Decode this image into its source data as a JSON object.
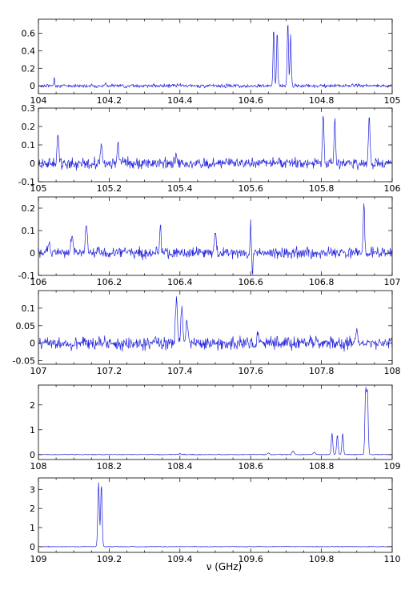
{
  "trace_color": "#2222dd",
  "xlabel": "ν (GHz)",
  "chart_data": [
    {
      "type": "line",
      "xlim": [
        104,
        105
      ],
      "ylim": [
        -0.09,
        0.76
      ],
      "xticks": [
        104,
        104.2,
        104.4,
        104.6,
        104.8,
        105
      ],
      "xticklabels": [
        "104",
        "104.2",
        "104.4",
        "104.6",
        "104.8",
        "105"
      ],
      "yticks": [
        0,
        0.2,
        0.4,
        0.6
      ],
      "yticklabels": [
        "0",
        "0.2",
        "0.4",
        "0.6"
      ],
      "noise": 0.012,
      "peaks": [
        {
          "x": 104.045,
          "h": 0.09,
          "w": 0.002
        },
        {
          "x": 104.19,
          "h": 0.03,
          "w": 0.002
        },
        {
          "x": 104.665,
          "h": 0.66,
          "w": 0.0025
        },
        {
          "x": 104.675,
          "h": 0.62,
          "w": 0.0025
        },
        {
          "x": 104.705,
          "h": 0.74,
          "w": 0.0025
        },
        {
          "x": 104.713,
          "h": 0.58,
          "w": 0.0025
        }
      ]
    },
    {
      "type": "line",
      "xlim": [
        105,
        106
      ],
      "ylim": [
        -0.1,
        0.3
      ],
      "xticks": [
        105,
        105.2,
        105.4,
        105.6,
        105.8,
        106
      ],
      "xticklabels": [
        "105",
        "105.2",
        "105.4",
        "105.6",
        "105.8",
        "106"
      ],
      "yticks": [
        -0.1,
        0,
        0.1,
        0.2,
        0.3
      ],
      "yticklabels": [
        "-0.1",
        "0",
        "0.1",
        "0.2",
        "0.3"
      ],
      "noise": 0.018,
      "peaks": [
        {
          "x": 105.055,
          "h": 0.19,
          "w": 0.003
        },
        {
          "x": 105.178,
          "h": 0.12,
          "w": 0.003
        },
        {
          "x": 105.225,
          "h": 0.12,
          "w": 0.003
        },
        {
          "x": 105.39,
          "h": 0.06,
          "w": 0.003
        },
        {
          "x": 105.805,
          "h": 0.28,
          "w": 0.003
        },
        {
          "x": 105.838,
          "h": 0.24,
          "w": 0.003
        },
        {
          "x": 105.935,
          "h": 0.27,
          "w": 0.003
        }
      ]
    },
    {
      "type": "line",
      "xlim": [
        106,
        107
      ],
      "ylim": [
        -0.1,
        0.25
      ],
      "xticks": [
        106,
        106.2,
        106.4,
        106.6,
        106.8,
        107
      ],
      "xticklabels": [
        "106",
        "106.2",
        "106.4",
        "106.6",
        "106.8",
        "107"
      ],
      "yticks": [
        -0.1,
        0,
        0.1,
        0.2
      ],
      "yticklabels": [
        "-0.1",
        "0",
        "0.1",
        "0.2"
      ],
      "noise": 0.015,
      "peaks": [
        {
          "x": 106.03,
          "h": 0.05,
          "w": 0.004
        },
        {
          "x": 106.095,
          "h": 0.08,
          "w": 0.004
        },
        {
          "x": 106.135,
          "h": 0.12,
          "w": 0.004
        },
        {
          "x": 106.345,
          "h": 0.13,
          "w": 0.003
        },
        {
          "x": 106.5,
          "h": 0.1,
          "w": 0.003
        },
        {
          "x": 106.6,
          "h": 0.13,
          "w": 0.002
        },
        {
          "x": 106.605,
          "h": -0.09,
          "w": 0.002
        },
        {
          "x": 106.92,
          "h": 0.22,
          "w": 0.003
        }
      ]
    },
    {
      "type": "line",
      "xlim": [
        107,
        108
      ],
      "ylim": [
        -0.06,
        0.15
      ],
      "xticks": [
        107,
        107.2,
        107.4,
        107.6,
        107.8,
        108
      ],
      "xticklabels": [
        "107",
        "107.2",
        "107.4",
        "107.6",
        "107.8",
        "108"
      ],
      "yticks": [
        -0.05,
        0,
        0.05,
        0.1
      ],
      "yticklabels": [
        "-0.05",
        "0",
        "0.05",
        "0.1"
      ],
      "noise": 0.011,
      "peaks": [
        {
          "x": 107.39,
          "h": 0.13,
          "w": 0.004
        },
        {
          "x": 107.405,
          "h": 0.1,
          "w": 0.004
        },
        {
          "x": 107.42,
          "h": 0.06,
          "w": 0.004
        },
        {
          "x": 107.62,
          "h": 0.04,
          "w": 0.003
        },
        {
          "x": 107.9,
          "h": 0.05,
          "w": 0.003
        }
      ]
    },
    {
      "type": "line",
      "xlim": [
        108,
        109
      ],
      "ylim": [
        -0.2,
        2.8
      ],
      "xticks": [
        108,
        108.2,
        108.4,
        108.6,
        108.8,
        109
      ],
      "xticklabels": [
        "108",
        "108.2",
        "108.4",
        "108.6",
        "108.8",
        "109"
      ],
      "yticks": [
        0,
        1,
        2
      ],
      "yticklabels": [
        "0",
        "1",
        "2"
      ],
      "noise": 0.01,
      "peaks": [
        {
          "x": 108.4,
          "h": 0.05,
          "w": 0.002
        },
        {
          "x": 108.65,
          "h": 0.06,
          "w": 0.004
        },
        {
          "x": 108.72,
          "h": 0.15,
          "w": 0.004
        },
        {
          "x": 108.78,
          "h": 0.1,
          "w": 0.004
        },
        {
          "x": 108.83,
          "h": 0.85,
          "w": 0.003
        },
        {
          "x": 108.845,
          "h": 0.8,
          "w": 0.003
        },
        {
          "x": 108.86,
          "h": 0.85,
          "w": 0.003
        },
        {
          "x": 108.925,
          "h": 2.55,
          "w": 0.003
        },
        {
          "x": 108.93,
          "h": 2.45,
          "w": 0.003
        }
      ]
    },
    {
      "type": "line",
      "xlim": [
        109,
        110
      ],
      "ylim": [
        -0.3,
        3.6
      ],
      "xticks": [
        109,
        109.2,
        109.4,
        109.6,
        109.8,
        110
      ],
      "xticklabels": [
        "109",
        "109.2",
        "109.4",
        "109.6",
        "109.8",
        "110"
      ],
      "yticks": [
        0,
        1,
        2,
        3
      ],
      "yticklabels": [
        "0",
        "1",
        "2",
        "3"
      ],
      "noise": 0.012,
      "peaks": [
        {
          "x": 109.17,
          "h": 3.35,
          "w": 0.003
        },
        {
          "x": 109.178,
          "h": 3.25,
          "w": 0.003
        }
      ]
    }
  ]
}
